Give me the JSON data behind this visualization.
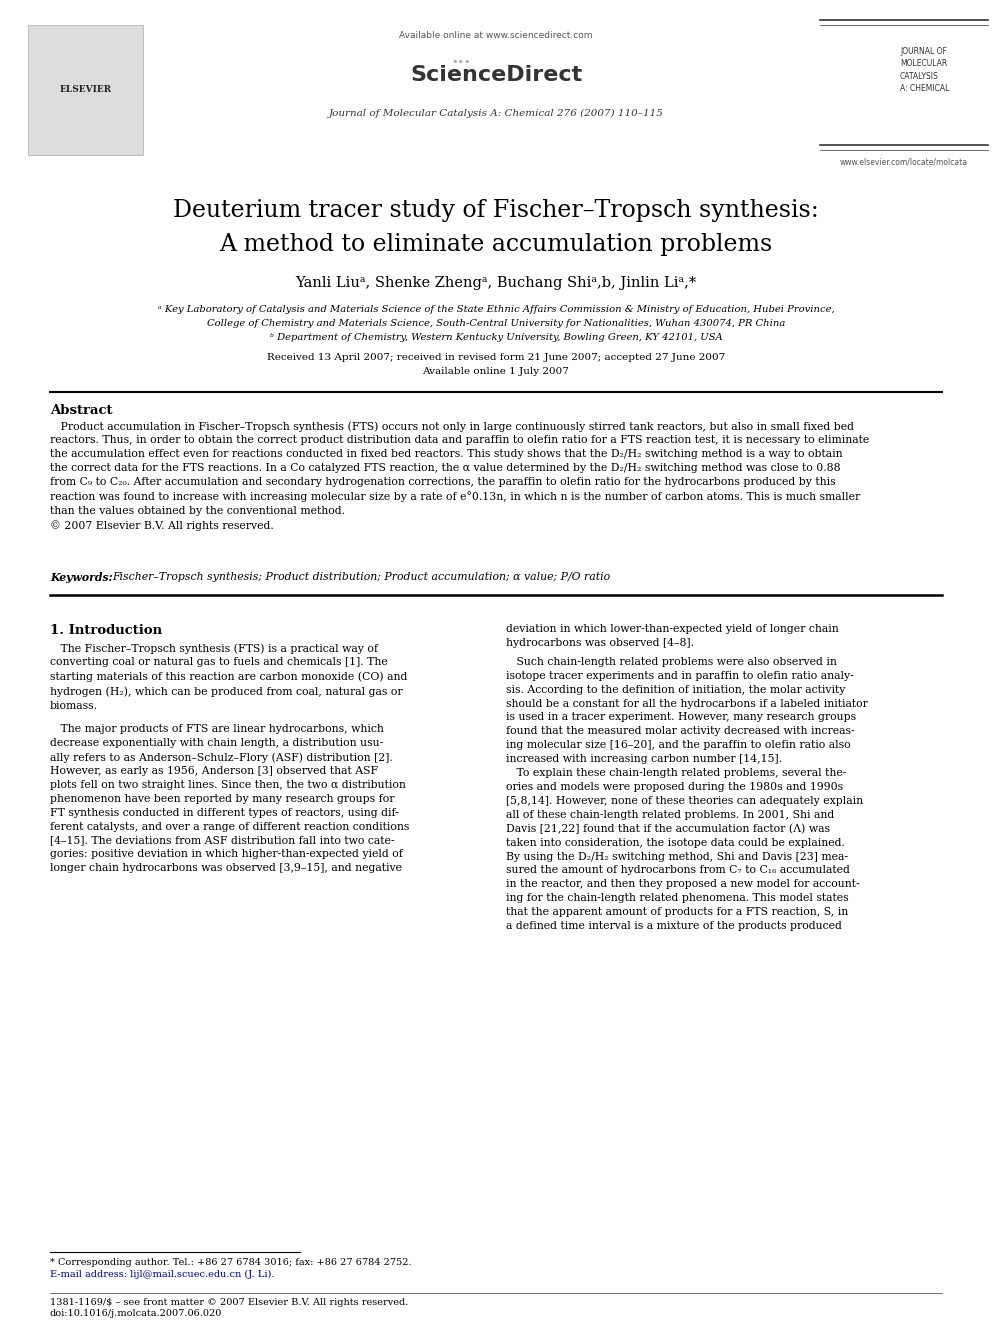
{
  "bg_color": "#ffffff",
  "page_width": 9.92,
  "page_height": 13.23,
  "header_available_text": "Available online at www.sciencedirect.com",
  "header_journal_line": "Journal of Molecular Catalysis A: Chemical 276 (2007) 110–115",
  "header_website": "www.elsevier.com/locate/molcata",
  "title_line1": "Deuterium tracer study of Fischer–Tropsch synthesis:",
  "title_line2": "A method to eliminate accumulation problems",
  "authors": "Yanli Liuᵃ, Shenke Zhengᵃ, Buchang Shiᵃ,b, Jinlin Liᵃ,*",
  "affil_a": "ᵃ Key Laboratory of Catalysis and Materials Science of the State Ethnic Affairs Commission & Ministry of Education, Hubei Province,",
  "affil_a2": "College of Chemistry and Materials Science, South-Central University for Nationalities, Wuhan 430074, PR China",
  "affil_b": "ᵇ Department of Chemistry, Western Kentucky University, Bowling Green, KY 42101, USA",
  "received_line": "Received 13 April 2007; received in revised form 21 June 2007; accepted 27 June 2007",
  "available_line": "Available online 1 July 2007",
  "abstract_header": "Abstract",
  "keywords_label": "Keywords:  ",
  "keywords_text": "Fischer–Tropsch synthesis; Product distribution; Product accumulation; α value; P/O ratio",
  "section1_header": "1. Introduction",
  "footnote_corresp": "* Corresponding author. Tel.: +86 27 6784 3016; fax: +86 27 6784 2752.",
  "footnote_email": "E-mail address: lijl@mail.scuec.edu.cn (J. Li).",
  "footnote_issn": "1381-1169/$ – see front matter © 2007 Elsevier B.V. All rights reserved.",
  "footnote_doi": "doi:10.1016/j.molcata.2007.06.020"
}
